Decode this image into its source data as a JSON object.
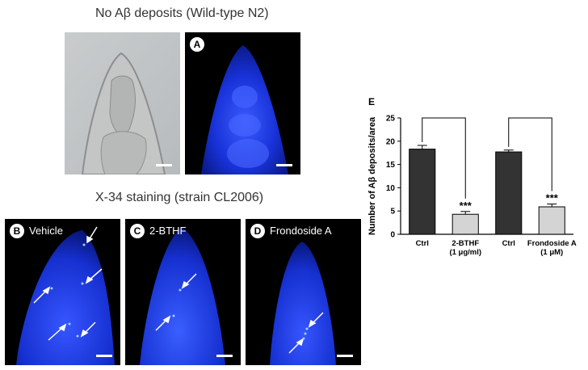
{
  "titles": {
    "top": "No Aβ deposits (Wild-type N2)",
    "middle": "X-34 staining (strain CL2006)"
  },
  "panels": {
    "a": {
      "badge": "A"
    },
    "b": {
      "badge": "B",
      "label": "Vehicle"
    },
    "c": {
      "badge": "C",
      "label": "2-BTHF"
    },
    "d": {
      "badge": "D",
      "label": "Frondoside A"
    }
  },
  "chart_data": {
    "type": "bar",
    "panel_letter": "E",
    "ylabel": "Number of Aβ deposits/area",
    "ylim": [
      0,
      25
    ],
    "yticks": [
      0,
      5,
      10,
      15,
      20,
      25
    ],
    "categories": [
      {
        "line1": "Ctrl",
        "line2": ""
      },
      {
        "line1": "2-BTHF",
        "line2": "(1 μg/ml)"
      },
      {
        "line1": "Ctrl",
        "line2": ""
      },
      {
        "line1": "Frondoside A",
        "line2": "(1 μM)"
      }
    ],
    "values": [
      18.3,
      4.3,
      17.7,
      5.9
    ],
    "errors": [
      0.8,
      0.6,
      0.4,
      0.6
    ],
    "colors": [
      "#333333",
      "#d4d4d4",
      "#333333",
      "#d4d4d4"
    ],
    "significance": [
      "",
      "***",
      "",
      "***"
    ],
    "brackets": [
      [
        0,
        1
      ],
      [
        2,
        3
      ]
    ]
  }
}
